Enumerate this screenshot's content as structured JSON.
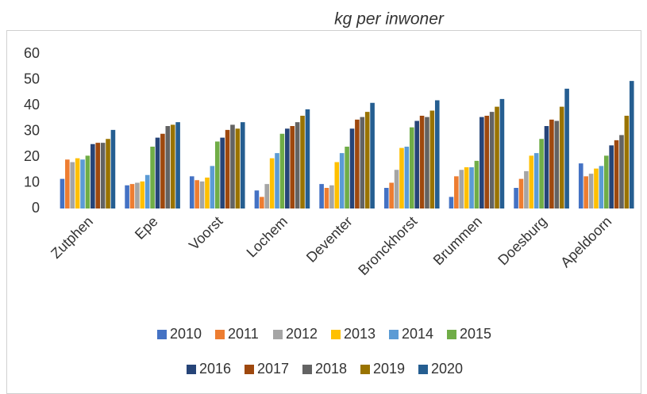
{
  "chart_data": {
    "type": "bar",
    "title": "kg per inwoner",
    "categories": [
      "Zutphen",
      "Epe",
      "Voorst",
      "Lochem",
      "Deventer",
      "Bronckhorst",
      "Brummen",
      "Doesburg",
      "Apeldoorn"
    ],
    "series": [
      {
        "name": "2010",
        "color": "#4472c4",
        "values": [
          11.5,
          9,
          12.5,
          7,
          9.5,
          8,
          4.5,
          8,
          17.5
        ]
      },
      {
        "name": "2011",
        "color": "#ed7d31",
        "values": [
          19,
          9.5,
          11,
          4.5,
          8,
          10,
          12.5,
          11.5,
          12.5
        ]
      },
      {
        "name": "2012",
        "color": "#a5a5a5",
        "values": [
          18,
          10,
          10.5,
          9.5,
          9,
          15,
          15,
          14.5,
          13.5
        ]
      },
      {
        "name": "2013",
        "color": "#ffc000",
        "values": [
          19.5,
          10.5,
          12,
          19.5,
          18,
          23.5,
          16,
          20.5,
          15.5
        ]
      },
      {
        "name": "2014",
        "color": "#5b9bd5",
        "values": [
          19,
          13,
          16.5,
          21.5,
          21.5,
          24,
          16,
          21.5,
          16.5
        ]
      },
      {
        "name": "2015",
        "color": "#70ad47",
        "values": [
          20.5,
          24,
          26,
          29,
          24,
          31.5,
          18.5,
          27,
          20.5
        ]
      },
      {
        "name": "2016",
        "color": "#264478",
        "values": [
          25,
          27.5,
          27.5,
          31,
          31,
          34,
          35.5,
          32,
          24.5
        ]
      },
      {
        "name": "2017",
        "color": "#9e480e",
        "values": [
          25.5,
          29,
          30.5,
          32,
          34.5,
          36,
          36,
          34.5,
          26.5
        ]
      },
      {
        "name": "2018",
        "color": "#636363",
        "values": [
          25.5,
          32,
          32.5,
          33.5,
          35.5,
          35.5,
          37.5,
          34,
          28.5
        ]
      },
      {
        "name": "2019",
        "color": "#997300",
        "values": [
          27,
          32.5,
          31,
          36,
          37.5,
          38,
          39.5,
          39.5,
          36
        ]
      },
      {
        "name": "2020",
        "color": "#255e91",
        "values": [
          30.5,
          33.5,
          33.5,
          38.5,
          41,
          42,
          42.5,
          46.5,
          49.5
        ]
      }
    ],
    "ylim": [
      0,
      60
    ],
    "yticks": [
      0,
      10,
      20,
      30,
      40,
      50,
      60
    ],
    "grid": false
  }
}
